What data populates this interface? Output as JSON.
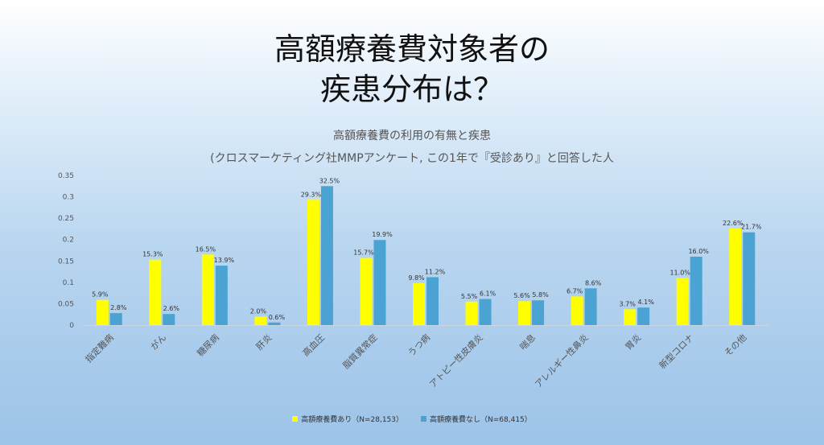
{
  "slide": {
    "title_line1": "高額療養費対象者の",
    "title_line2": "疾患分布は？"
  },
  "chart_data": {
    "type": "bar",
    "title": "高額療養費の利用の有無と疾患",
    "subtitle": "(クロスマーケティング社MMPアンケート, この1年で『受診あり』と回答した人",
    "categories": [
      "指定難病",
      "がん",
      "糖尿病",
      "肝炎",
      "高血圧",
      "脂質異常症",
      "うつ病",
      "アトピー性皮膚炎",
      "喘息",
      "アレルギー性鼻炎",
      "胃炎",
      "新型コロナ",
      "その他"
    ],
    "series": [
      {
        "name": "高額療養費あり（N=28,153）",
        "color": "#ffff00",
        "values": [
          0.059,
          0.153,
          0.165,
          0.02,
          0.293,
          0.157,
          0.098,
          0.055,
          0.056,
          0.067,
          0.037,
          0.11,
          0.226
        ],
        "labels": [
          "5.9%",
          "15.3%",
          "16.5%",
          "2.0%",
          "29.3%",
          "15.7%",
          "9.8%",
          "5.5%",
          "5.6%",
          "6.7%",
          "3.7%",
          "11.0%",
          "22.6%"
        ]
      },
      {
        "name": "高額療養費なし（N=68,415）",
        "color": "#4ba3d3",
        "values": [
          0.028,
          0.026,
          0.139,
          0.006,
          0.325,
          0.199,
          0.112,
          0.061,
          0.058,
          0.086,
          0.041,
          0.16,
          0.217
        ],
        "labels": [
          "2.8%",
          "2.6%",
          "13.9%",
          "0.6%",
          "32.5%",
          "19.9%",
          "11.2%",
          "6.1%",
          "5.8%",
          "8.6%",
          "4.1%",
          "16.0%",
          "21.7%"
        ]
      }
    ],
    "yticks": [
      "0",
      "0.05",
      "0.1",
      "0.15",
      "0.2",
      "0.25",
      "0.3",
      "0.35"
    ],
    "ylim": [
      0,
      0.35
    ],
    "grid": false,
    "legend_position": "bottom"
  }
}
